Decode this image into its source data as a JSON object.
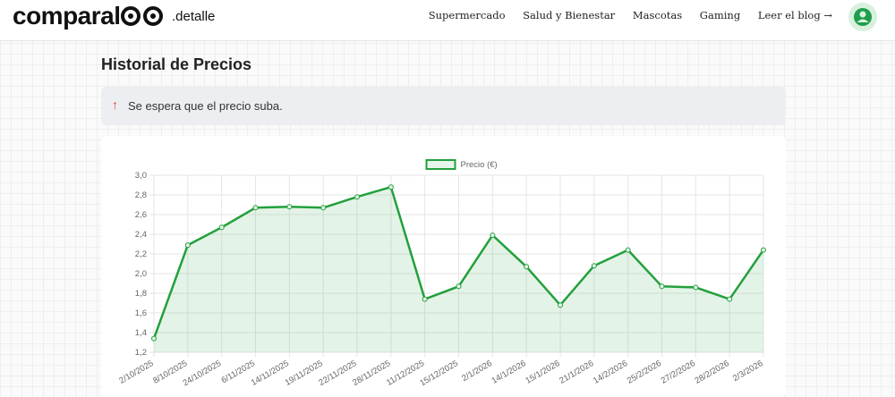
{
  "header": {
    "logo": "comparal",
    "logo_suffix": ".detalle",
    "nav": [
      "Supermercado",
      "Salud y Bienestar",
      "Mascotas",
      "Gaming",
      "Leer el blog →"
    ]
  },
  "title": "Historial de Precios",
  "alert": "Se espera que el precio suba.",
  "chart_data": {
    "type": "line",
    "categories": [
      "2/10/2025",
      "8/10/2025",
      "24/10/2025",
      "6/11/2025",
      "14/11/2025",
      "19/11/2025",
      "22/11/2025",
      "28/11/2025",
      "11/12/2025",
      "15/12/2025",
      "2/1/2026",
      "14/1/2026",
      "15/1/2026",
      "21/1/2026",
      "14/2/2026",
      "25/2/2026",
      "27/2/2026",
      "28/2/2026",
      "2/3/2026"
    ],
    "series": [
      {
        "name": "Precio (€)",
        "color": "#22a03c",
        "values": [
          1.34,
          2.29,
          2.47,
          2.67,
          2.68,
          2.67,
          2.78,
          2.88,
          1.74,
          1.87,
          2.39,
          2.07,
          1.68,
          2.08,
          2.24,
          1.87,
          1.86,
          1.74,
          2.24
        ]
      }
    ],
    "ylim": [
      1.2,
      3.0
    ],
    "yticks": [
      {
        "value": 1.2,
        "label": "1,2"
      },
      {
        "value": 1.4,
        "label": "1,4"
      },
      {
        "value": 1.6,
        "label": "1,6"
      },
      {
        "value": 1.8,
        "label": "1,8"
      },
      {
        "value": 2.0,
        "label": "2,0"
      },
      {
        "value": 2.2,
        "label": "2,2"
      },
      {
        "value": 2.4,
        "label": "2,4"
      },
      {
        "value": 2.6,
        "label": "2,6"
      },
      {
        "value": 2.8,
        "label": "2,8"
      },
      {
        "value": 3.0,
        "label": "3,0"
      }
    ],
    "grid": true,
    "legend": "top",
    "area": true
  }
}
